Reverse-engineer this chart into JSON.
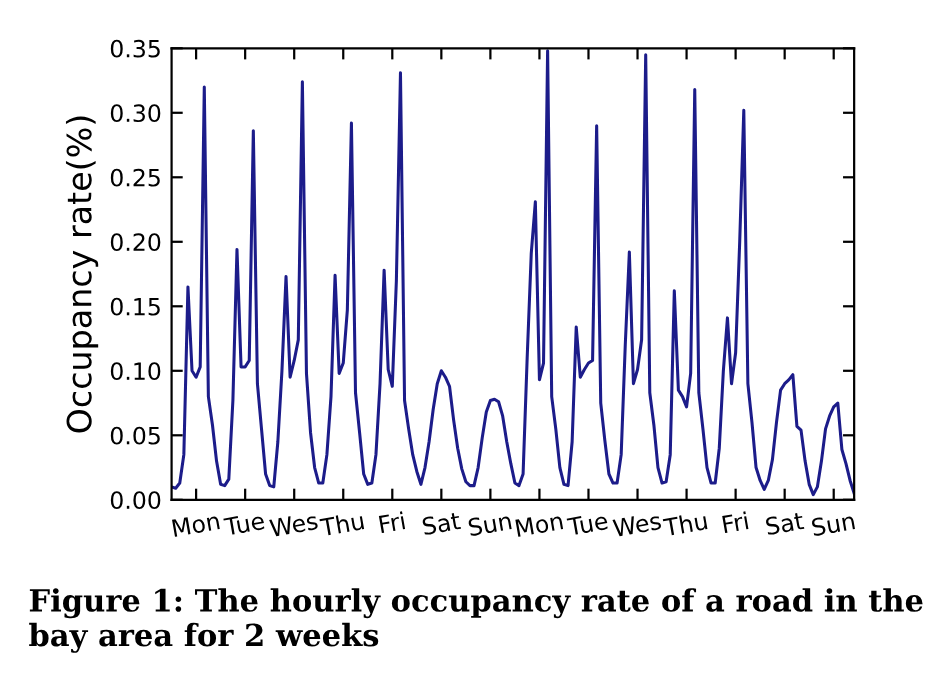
{
  "chart_data": {
    "type": "line",
    "ylabel": "Occupancy rate(%)",
    "annotations": [
      "Figure 1: The hourly occupancy rate of a road in the bay area for 2 weeks"
    ],
    "categories": [
      null,
      null,
      null,
      null,
      null,
      null,
      "Mon",
      null,
      null,
      null,
      null,
      null,
      null,
      null,
      null,
      null,
      null,
      null,
      "Tue",
      null,
      null,
      null,
      null,
      null,
      null,
      null,
      null,
      null,
      null,
      null,
      "Wes",
      null,
      null,
      null,
      null,
      null,
      null,
      null,
      null,
      null,
      null,
      null,
      "Thu",
      null,
      null,
      null,
      null,
      null,
      null,
      null,
      null,
      null,
      null,
      null,
      "Fri",
      null,
      null,
      null,
      null,
      null,
      null,
      null,
      null,
      null,
      null,
      null,
      "Sat",
      null,
      null,
      null,
      null,
      null,
      null,
      null,
      null,
      null,
      null,
      null,
      "Sun",
      null,
      null,
      null,
      null,
      null,
      null,
      null,
      null,
      null,
      null,
      null,
      "Mon",
      null,
      null,
      null,
      null,
      null,
      null,
      null,
      null,
      null,
      null,
      null,
      "Tue",
      null,
      null,
      null,
      null,
      null,
      null,
      null,
      null,
      null,
      null,
      null,
      "Wes",
      null,
      null,
      null,
      null,
      null,
      null,
      null,
      null,
      null,
      null,
      null,
      "Thu",
      null,
      null,
      null,
      null,
      null,
      null,
      null,
      null,
      null,
      null,
      null,
      "Fri",
      null,
      null,
      null,
      null,
      null,
      null,
      null,
      null,
      null,
      null,
      null,
      "Sat",
      null,
      null,
      null,
      null,
      null,
      null,
      null,
      null,
      null,
      null,
      null,
      "Sun",
      null,
      null,
      null,
      null,
      null
    ],
    "ylim": [
      0,
      0.35
    ],
    "yticks": [
      {
        "value": 0,
        "label": "0.00"
      },
      {
        "value": 0.05,
        "label": "0.05"
      },
      {
        "value": 0.1,
        "label": "0.10"
      },
      {
        "value": 0.15,
        "label": "0.15"
      },
      {
        "value": 0.2,
        "label": "0.20"
      },
      {
        "value": 0.25,
        "label": "0.25"
      },
      {
        "value": 0.3,
        "label": "0.30"
      },
      {
        "value": 0.35,
        "label": "0.35"
      }
    ],
    "grid": false,
    "marker": "none",
    "line_style": "solid",
    "series": [
      {
        "color": "#1c1c8a",
        "values": [
          0.01,
          0.009,
          0.013,
          0.035,
          0.165,
          0.1,
          0.095,
          0.103,
          0.32,
          0.08,
          0.058,
          0.03,
          0.012,
          0.011,
          0.016,
          0.077,
          0.194,
          0.103,
          0.103,
          0.108,
          0.286,
          0.09,
          0.055,
          0.02,
          0.011,
          0.01,
          0.045,
          0.1,
          0.173,
          0.095,
          0.108,
          0.124,
          0.324,
          0.098,
          0.052,
          0.025,
          0.013,
          0.013,
          0.035,
          0.08,
          0.174,
          0.098,
          0.106,
          0.147,
          0.292,
          0.083,
          0.052,
          0.02,
          0.012,
          0.013,
          0.035,
          0.09,
          0.178,
          0.101,
          0.088,
          0.17,
          0.331,
          0.077,
          0.055,
          0.035,
          0.022,
          0.012,
          0.025,
          0.045,
          0.07,
          0.09,
          0.1,
          0.095,
          0.088,
          0.062,
          0.04,
          0.024,
          0.014,
          0.011,
          0.011,
          0.025,
          0.048,
          0.068,
          0.077,
          0.078,
          0.076,
          0.065,
          0.045,
          0.028,
          0.013,
          0.011,
          0.02,
          0.11,
          0.191,
          0.231,
          0.093,
          0.106,
          0.348,
          0.08,
          0.055,
          0.025,
          0.012,
          0.011,
          0.045,
          0.134,
          0.095,
          0.101,
          0.106,
          0.108,
          0.29,
          0.075,
          0.046,
          0.02,
          0.013,
          0.013,
          0.035,
          0.12,
          0.192,
          0.09,
          0.101,
          0.124,
          0.345,
          0.083,
          0.058,
          0.025,
          0.013,
          0.014,
          0.035,
          0.162,
          0.085,
          0.08,
          0.072,
          0.098,
          0.318,
          0.083,
          0.055,
          0.025,
          0.013,
          0.013,
          0.04,
          0.1,
          0.141,
          0.09,
          0.114,
          0.2,
          0.302,
          0.09,
          0.06,
          0.025,
          0.015,
          0.008,
          0.015,
          0.031,
          0.06,
          0.085,
          0.09,
          0.093,
          0.097,
          0.057,
          0.054,
          0.03,
          0.012,
          0.004,
          0.01,
          0.03,
          0.055,
          0.065,
          0.072,
          0.075,
          0.039,
          0.028,
          0.015,
          0.005
        ]
      }
    ]
  }
}
